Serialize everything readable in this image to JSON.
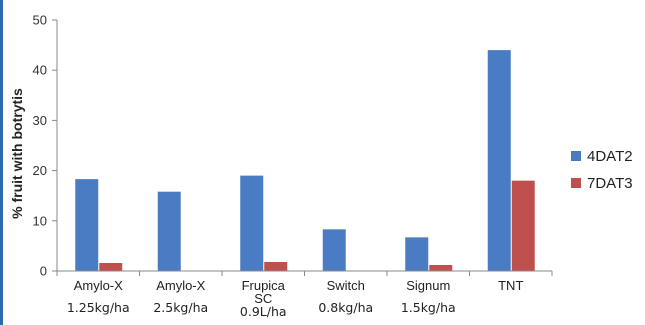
{
  "chart_data": {
    "type": "bar",
    "categories": [
      {
        "line1": "Amylo-X",
        "line2": "1.25kg/ha"
      },
      {
        "line1": "Amylo-X",
        "line2": "2.5kg/ha"
      },
      {
        "line1": "Frupica",
        "line2": "SC",
        "line3": "0.9L/ha"
      },
      {
        "line1": "Switch",
        "line2": "0.8kg/ha"
      },
      {
        "line1": "Signum",
        "line2": "1.5kg/ha"
      },
      {
        "line1": "TNT"
      }
    ],
    "series": [
      {
        "name": "4DAT2",
        "color": "#4a7cc4",
        "values": [
          18.3,
          15.8,
          19.0,
          8.3,
          6.7,
          44.0
        ]
      },
      {
        "name": "7DAT3",
        "color": "#c0504d",
        "values": [
          1.6,
          0,
          1.8,
          0,
          1.2,
          18.0
        ]
      }
    ],
    "title": "",
    "xlabel": "",
    "ylabel": "% fruit with botrytis",
    "ylim": [
      0,
      50
    ],
    "yticks": [
      0,
      10,
      20,
      30,
      40,
      50
    ],
    "grid": false,
    "legend_position": "right"
  }
}
